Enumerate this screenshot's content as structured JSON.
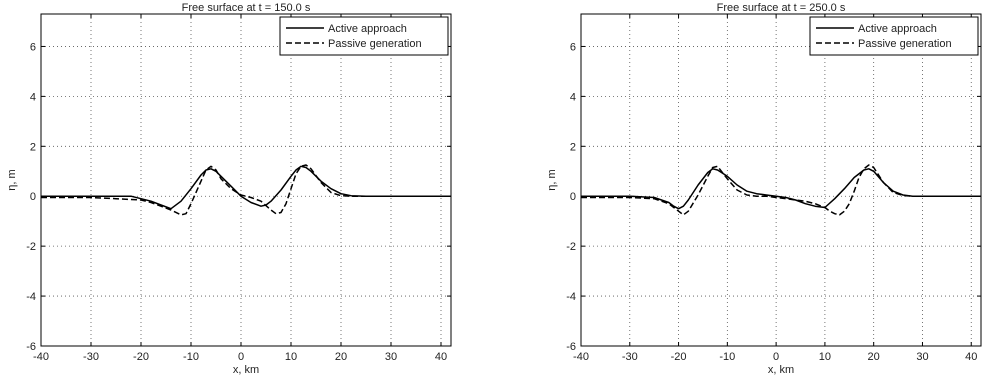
{
  "chart_data": [
    {
      "type": "line",
      "title": "Free surface at t = 150.0 s",
      "xlabel": "x, km",
      "ylabel": "η, m",
      "xlim": [
        -40,
        42
      ],
      "ylim": [
        -6,
        7.3
      ],
      "xticks": [
        -40,
        -30,
        -20,
        -10,
        0,
        10,
        20,
        30,
        40
      ],
      "yticks": [
        -6,
        -4,
        -2,
        0,
        2,
        4,
        6
      ],
      "grid": true,
      "legend": "top-right",
      "series": [
        {
          "name": "Active approach",
          "style": "solid",
          "color": "#000000",
          "x": [
            -40,
            -30,
            -25,
            -22,
            -20,
            -18,
            -16,
            -14,
            -12,
            -10,
            -8,
            -7,
            -6,
            -5,
            -4,
            -2,
            0,
            2,
            4,
            5,
            6,
            8,
            10,
            11,
            12,
            13,
            14,
            16,
            18,
            20,
            22,
            25,
            30,
            35,
            42
          ],
          "y": [
            0,
            0,
            0,
            0,
            -0.1,
            -0.2,
            -0.35,
            -0.5,
            -0.2,
            0.3,
            0.85,
            1.05,
            1.1,
            1.0,
            0.8,
            0.4,
            0.0,
            -0.25,
            -0.4,
            -0.35,
            -0.2,
            0.25,
            0.8,
            1.05,
            1.2,
            1.15,
            1.0,
            0.6,
            0.3,
            0.1,
            0.02,
            0,
            0,
            0,
            0
          ]
        },
        {
          "name": "Passive generation",
          "style": "dashed",
          "color": "#000000",
          "x": [
            -40,
            -30,
            -25,
            -20,
            -18,
            -16,
            -14,
            -12,
            -11,
            -10,
            -8,
            -7,
            -6,
            -5,
            -4,
            -2,
            0,
            2,
            4,
            6,
            7,
            8,
            9,
            10,
            11,
            12,
            13,
            14,
            16,
            18,
            20,
            22,
            25,
            30,
            35,
            42
          ],
          "y": [
            -0.05,
            -0.05,
            -0.1,
            -0.15,
            -0.25,
            -0.4,
            -0.55,
            -0.75,
            -0.7,
            -0.3,
            0.6,
            1.05,
            1.2,
            1.05,
            0.7,
            0.3,
            0.05,
            -0.05,
            -0.2,
            -0.55,
            -0.7,
            -0.65,
            -0.3,
            0.3,
            0.9,
            1.2,
            1.25,
            1.1,
            0.55,
            0.15,
            0.02,
            0,
            0,
            0,
            0,
            0
          ]
        }
      ]
    },
    {
      "type": "line",
      "title": "Free surface at t = 250.0 s",
      "xlabel": "x, km",
      "ylabel": "η, m",
      "xlim": [
        -40,
        42
      ],
      "ylim": [
        -6,
        7.3
      ],
      "xticks": [
        -40,
        -30,
        -20,
        -10,
        0,
        10,
        20,
        30,
        40
      ],
      "yticks": [
        -6,
        -4,
        -2,
        0,
        2,
        4,
        6
      ],
      "grid": true,
      "legend": "top-right",
      "series": [
        {
          "name": "Active approach",
          "style": "solid",
          "color": "#000000",
          "x": [
            -40,
            -30,
            -25,
            -22,
            -21,
            -20,
            -19,
            -18,
            -16,
            -14,
            -13,
            -12,
            -10,
            -8,
            -6,
            -4,
            -2,
            0,
            2,
            4,
            6,
            8,
            10,
            12,
            14,
            16,
            18,
            19,
            20,
            22,
            24,
            26,
            28,
            30,
            35,
            42
          ],
          "y": [
            0,
            0,
            -0.05,
            -0.25,
            -0.4,
            -0.5,
            -0.4,
            -0.15,
            0.45,
            0.95,
            1.1,
            1.05,
            0.8,
            0.45,
            0.2,
            0.1,
            0.05,
            0,
            -0.05,
            -0.15,
            -0.3,
            -0.4,
            -0.45,
            -0.1,
            0.3,
            0.75,
            1.05,
            1.1,
            1.0,
            0.55,
            0.2,
            0.05,
            0,
            0,
            0,
            0
          ]
        },
        {
          "name": "Passive generation",
          "style": "dashed",
          "color": "#000000",
          "x": [
            -40,
            -30,
            -25,
            -22,
            -20,
            -19,
            -18,
            -16,
            -14,
            -13,
            -12,
            -10,
            -8,
            -6,
            -4,
            -2,
            0,
            2,
            4,
            6,
            8,
            10,
            11,
            12,
            13,
            14,
            15,
            16,
            17,
            18,
            19,
            20,
            22,
            24,
            26,
            28,
            30,
            35,
            42
          ],
          "y": [
            -0.05,
            -0.05,
            -0.1,
            -0.3,
            -0.6,
            -0.75,
            -0.6,
            0.05,
            0.8,
            1.15,
            1.2,
            0.7,
            0.25,
            0.05,
            0,
            0,
            -0.05,
            -0.1,
            -0.15,
            -0.2,
            -0.3,
            -0.45,
            -0.6,
            -0.7,
            -0.75,
            -0.6,
            -0.3,
            0.2,
            0.75,
            1.1,
            1.25,
            1.15,
            0.55,
            0.15,
            0.03,
            0,
            0,
            0,
            0
          ]
        }
      ]
    }
  ]
}
